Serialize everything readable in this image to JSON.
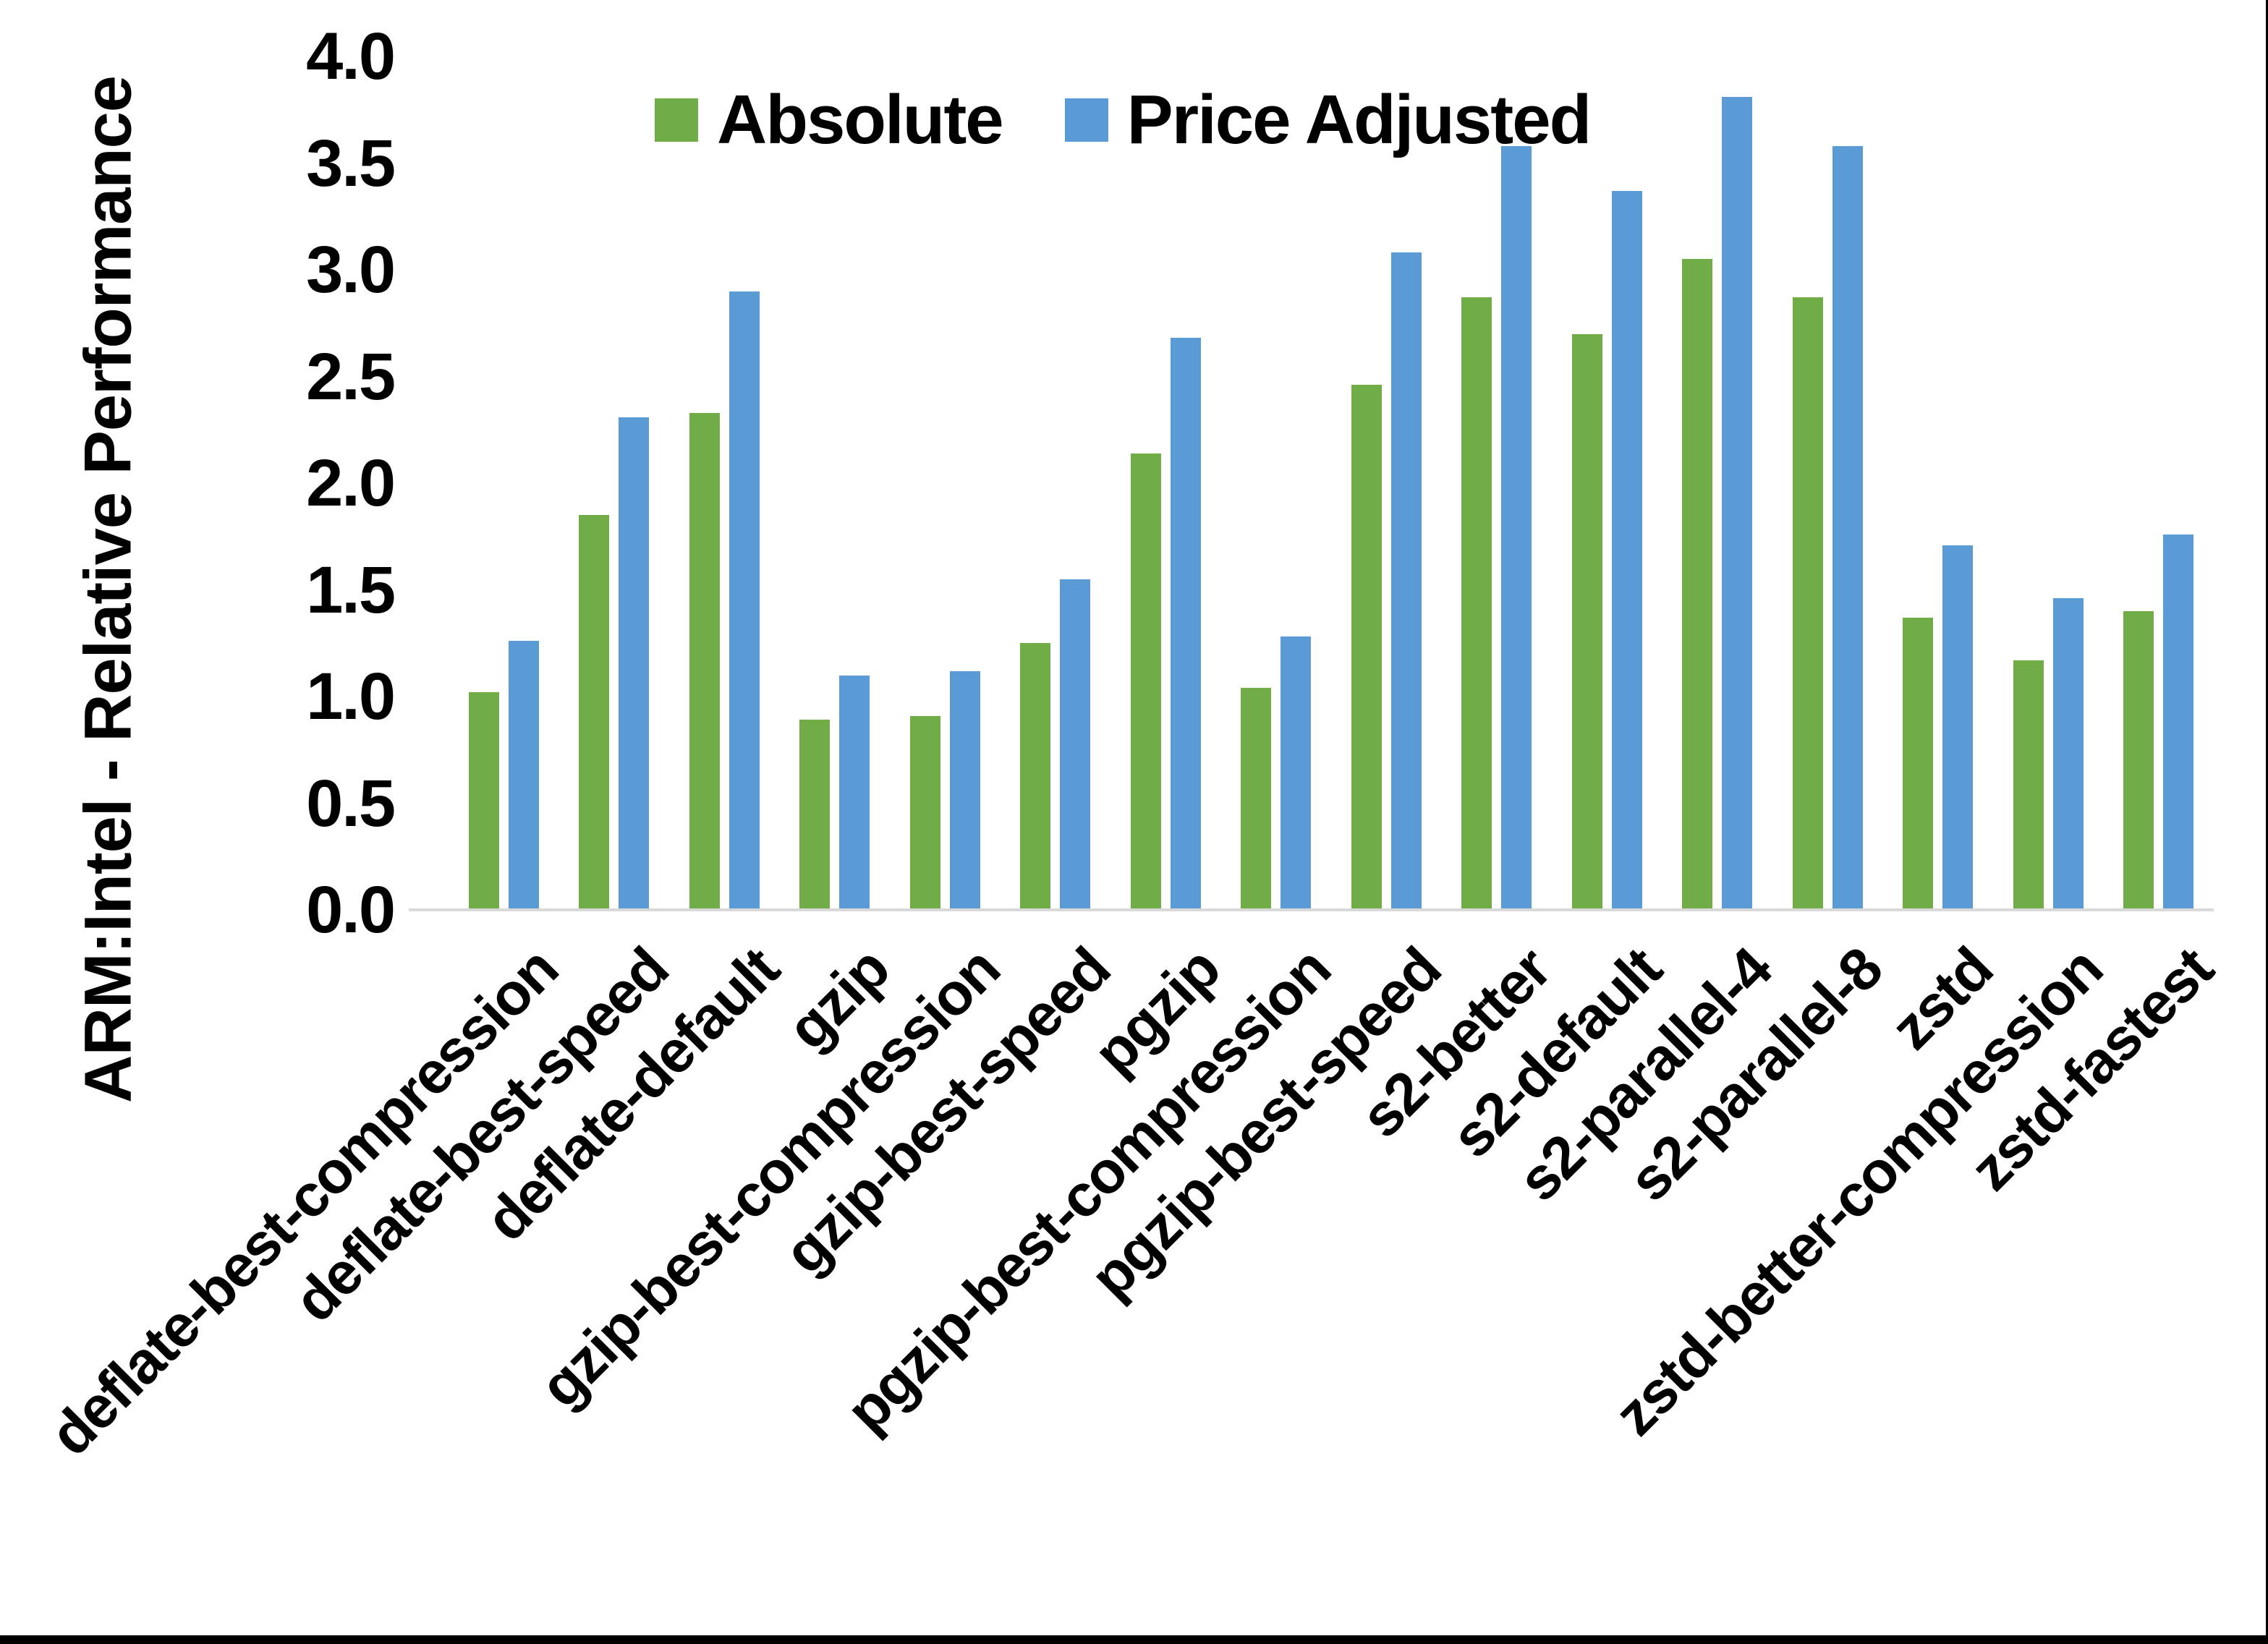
{
  "chart_data": {
    "type": "bar",
    "title": "",
    "ylabel": "ARM:Intel - Relative Performance",
    "xlabel": "",
    "ylim": [
      0,
      4
    ],
    "ytick_step": 0.5,
    "ytick_labels": [
      "0.0",
      "0.5",
      "1.0",
      "1.5",
      "2.0",
      "2.5",
      "3.0",
      "3.5",
      "4.0"
    ],
    "grid": false,
    "legend_position": "top-center",
    "categories": [
      "deflate-best-compression",
      "deflate-best-speed",
      "deflate-default",
      "gzip",
      "gzip-best-compression",
      "gzip-best-speed",
      "pgzip",
      "pgzip-best-compression",
      "pgzip-best-speed",
      "s2-better",
      "s2-default",
      "s2-parallel-4",
      "s2-parallel-8",
      "zstd",
      "zstd-better-compression",
      "zstd-fastest"
    ],
    "series": [
      {
        "name": "Absolute",
        "color": "#70AD47",
        "values": [
          1.02,
          1.85,
          2.33,
          0.89,
          0.91,
          1.25,
          2.14,
          1.04,
          2.46,
          2.87,
          2.7,
          3.05,
          2.87,
          1.37,
          1.17,
          1.4
        ]
      },
      {
        "name": "Price Adjusted",
        "color": "#5B9BD5",
        "values": [
          1.26,
          2.31,
          2.9,
          1.1,
          1.12,
          1.55,
          2.68,
          1.28,
          3.08,
          3.58,
          3.37,
          3.81,
          3.58,
          1.71,
          1.46,
          1.76
        ]
      }
    ],
    "baseline_color": "#D9D9D9",
    "text_color": "#000000",
    "border_bottom_color": "#000000"
  },
  "legend": {
    "absolute_label": "Absolute",
    "price_adjusted_label": "Price Adjusted"
  },
  "y_axis": {
    "title": "ARM:Intel - Relative Performance"
  }
}
